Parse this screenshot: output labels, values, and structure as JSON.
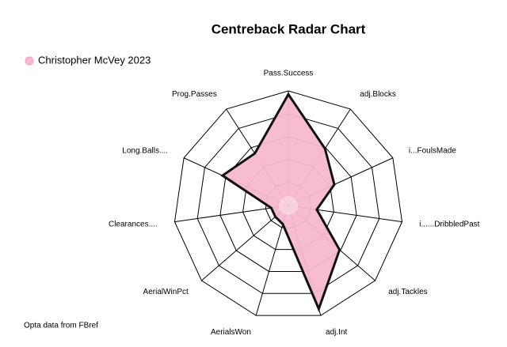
{
  "chart_data": {
    "type": "radar",
    "title": "Centreback Radar Chart",
    "categories": [
      "Pass.Success",
      "adj.Blocks",
      "i...FoulsMade",
      "i......DribbledPast",
      "adj.Tackles",
      "adj.Int",
      "AerialsWon",
      "AerialWinPct",
      "Clearances....",
      "Long.Balls....",
      "Prog.Passes"
    ],
    "series": [
      {
        "name": "Christopher McVey 2023",
        "color": "#f8b8d0",
        "values": [
          0.97,
          0.59,
          0.44,
          0.25,
          0.59,
          0.94,
          0.17,
          0.15,
          0.15,
          0.63,
          0.54
        ]
      }
    ],
    "ylim": [
      0,
      1
    ],
    "yticks": [
      0,
      0.2,
      0.4,
      0.6,
      0.8,
      1
    ],
    "grid": true,
    "caption": "Opta data from FBref"
  }
}
